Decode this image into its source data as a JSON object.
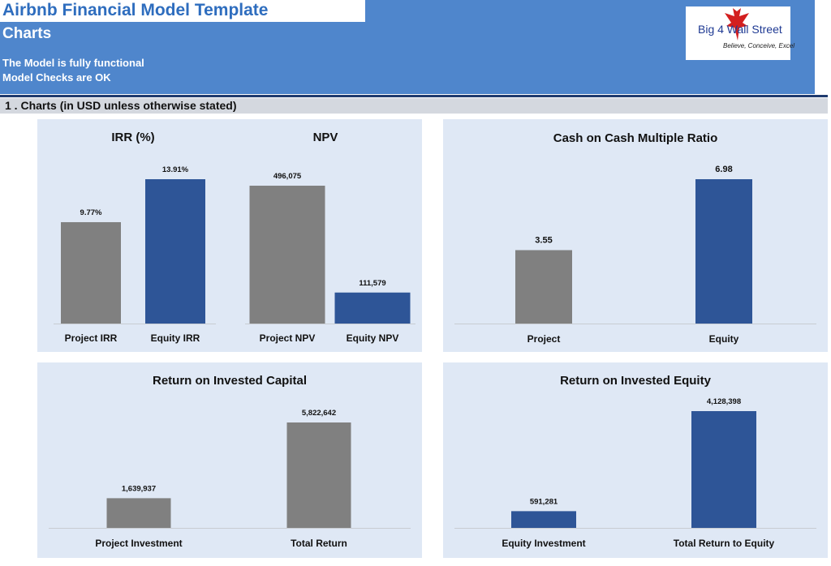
{
  "header": {
    "app_title": "Airbnb Financial Model Template",
    "sheet_title": "Charts",
    "status_lines": [
      "The Model is fully functional",
      "Model Checks are OK"
    ],
    "logo": {
      "text": "Big 4 Wall Street",
      "tagline": "Believe, Conceive, Excel"
    }
  },
  "section": {
    "title": "1 . Charts (in USD unless otherwise stated)"
  },
  "colors": {
    "banner": "#4f86cc",
    "grey_bar": "#808080",
    "blue_bar": "#2e5597",
    "panel_bg": "#dfe8f5",
    "title_blue": "#2e6dbe"
  },
  "chart_data": [
    {
      "type": "bar",
      "title": "IRR (%)",
      "categories": [
        "Project IRR",
        "Equity IRR"
      ],
      "values": [
        9.77,
        13.91
      ],
      "value_labels": [
        "9.77%",
        "13.91%"
      ]
    },
    {
      "type": "bar",
      "title": "NPV",
      "categories": [
        "Project NPV",
        "Equity NPV"
      ],
      "values": [
        496075,
        111579
      ],
      "value_labels": [
        "496,075",
        "111,579"
      ]
    },
    {
      "type": "bar",
      "title": "Cash on Cash Multiple Ratio",
      "categories": [
        "Project",
        "Equity"
      ],
      "values": [
        3.55,
        6.98
      ],
      "value_labels": [
        "3.55",
        "6.98"
      ]
    },
    {
      "type": "bar",
      "title": "Return on Invested Capital",
      "categories": [
        "Project Investment",
        "Total Return"
      ],
      "values": [
        1639937,
        5822642
      ],
      "value_labels": [
        "1,639,937",
        "5,822,642"
      ]
    },
    {
      "type": "bar",
      "title": "Return on Invested Equity",
      "categories": [
        "Equity Investment",
        "Total Return to  Equity"
      ],
      "values": [
        591281,
        4128398
      ],
      "value_labels": [
        "591,281",
        "4,128,398"
      ]
    }
  ]
}
